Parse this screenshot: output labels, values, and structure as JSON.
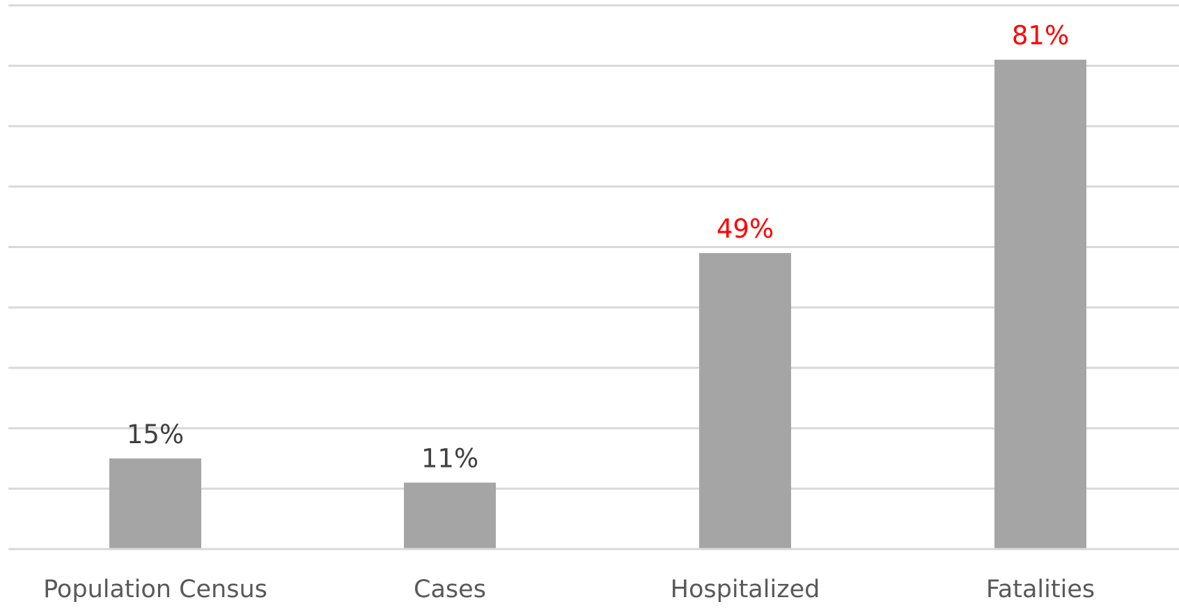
{
  "chart_data": {
    "type": "bar",
    "categories": [
      "Population Census",
      "Cases",
      "Hospitalized",
      "Fatalities"
    ],
    "values": [
      15,
      11,
      49,
      81
    ],
    "data_labels": [
      "15%",
      "11%",
      "49%",
      "81%"
    ],
    "title": "",
    "xlabel": "",
    "ylabel": "",
    "ylim": [
      0,
      90
    ],
    "y_gridline_step": 10,
    "grid": true,
    "y_axis_labels_shown": false,
    "legend": "none",
    "colors": {
      "bar": "#a5a5a5",
      "gridline": "#d9d9d9",
      "axis_line": "#d9d9d9",
      "label_default": "#404040",
      "label_highlight": "#ff0000",
      "category_label": "#595959"
    },
    "label_highlight": [
      false,
      false,
      true,
      true
    ]
  }
}
